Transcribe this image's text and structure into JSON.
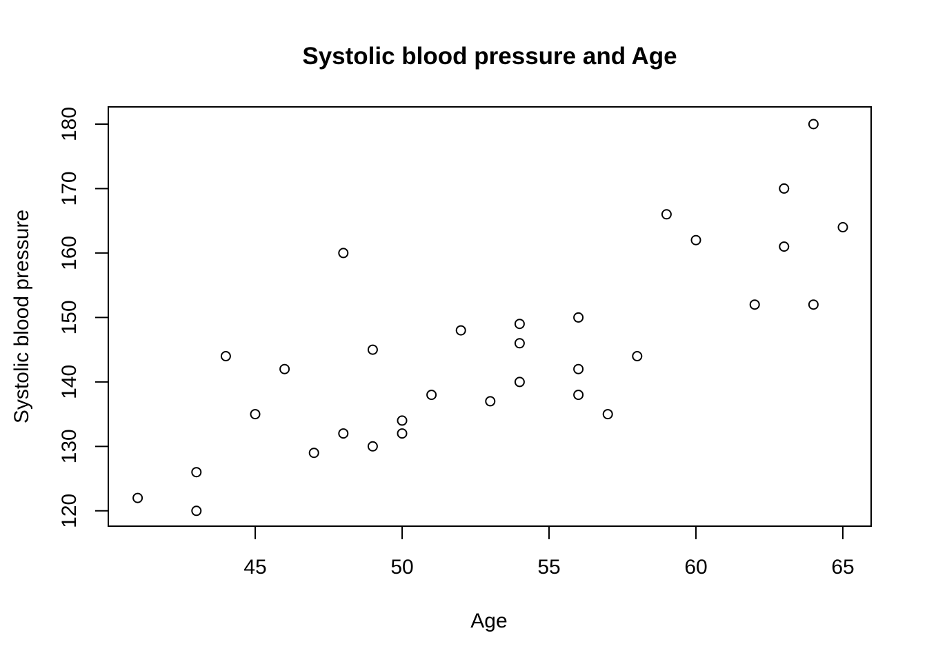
{
  "chart": {
    "title": "Systolic blood pressure and Age",
    "xlabel": "Age",
    "ylabel": "Systolic blood pressure"
  },
  "chart_data": {
    "type": "scatter",
    "title": "Systolic blood pressure and Age",
    "xlabel": "Age",
    "ylabel": "Systolic blood pressure",
    "x_ticks": [
      45,
      50,
      55,
      60,
      65
    ],
    "y_ticks": [
      120,
      130,
      140,
      150,
      160,
      170,
      180
    ],
    "xlim": [
      40,
      66
    ],
    "ylim": [
      117.5,
      182.5
    ],
    "grid": false,
    "legend": "none",
    "marker": "open-circle",
    "marker_color": "#000000",
    "axis_color": "#000000",
    "background_color": "#ffffff",
    "points": [
      [
        41,
        122
      ],
      [
        43,
        120
      ],
      [
        43,
        126
      ],
      [
        44,
        144
      ],
      [
        45,
        135
      ],
      [
        46,
        142
      ],
      [
        47,
        129
      ],
      [
        48,
        132
      ],
      [
        48,
        160
      ],
      [
        49,
        130
      ],
      [
        49,
        145
      ],
      [
        50,
        132
      ],
      [
        50,
        134
      ],
      [
        51,
        138
      ],
      [
        52,
        148
      ],
      [
        53,
        137
      ],
      [
        54,
        140
      ],
      [
        54,
        146
      ],
      [
        54,
        149
      ],
      [
        56,
        138
      ],
      [
        56,
        142
      ],
      [
        56,
        150
      ],
      [
        57,
        135
      ],
      [
        58,
        144
      ],
      [
        59,
        166
      ],
      [
        60,
        162
      ],
      [
        62,
        152
      ],
      [
        63,
        161
      ],
      [
        63,
        170
      ],
      [
        64,
        152
      ],
      [
        64,
        180
      ],
      [
        65,
        164
      ]
    ]
  }
}
